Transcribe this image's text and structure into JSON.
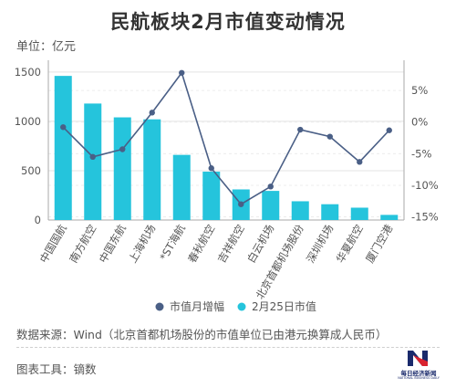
{
  "title": "民航板块2月市值变动情况",
  "unit_label": "单位：亿元",
  "source": "数据来源：Wind（北京首都机场股份的市值单位已由港元换算成人民币）",
  "tool": "图表工具：镝数",
  "logo": {
    "cn": "每日经济新闻",
    "en": "NATIONAL BUSINESS DAILY"
  },
  "colors": {
    "bar": "#25C4DC",
    "line": "#4A5F86",
    "grid": "#e3e3e3"
  },
  "chart_data": {
    "type": "bar",
    "categories": [
      "中国国航",
      "南方航空",
      "中国东航",
      "上海机场",
      "*ST海航",
      "春秋航空",
      "吉祥航空",
      "白云机场",
      "北京首都机场股份",
      "深圳机场",
      "华夏航空",
      "厦门空港"
    ],
    "series": [
      {
        "name": "2月25日市值",
        "type": "bar",
        "axis": "left",
        "values": [
          1460,
          1180,
          1040,
          1020,
          660,
          490,
          310,
          295,
          190,
          160,
          125,
          52
        ]
      },
      {
        "name": "市值月增幅",
        "type": "line",
        "axis": "right",
        "unit": "%",
        "values": [
          -0.8,
          -5.5,
          -4.3,
          1.5,
          7.8,
          -7.3,
          -13.0,
          -10.2,
          -1.2,
          -2.3,
          -6.3,
          -1.3
        ]
      }
    ],
    "y_left": {
      "ticks": [
        0,
        500,
        1000,
        1500
      ],
      "ylim": [
        0,
        1600
      ]
    },
    "y_right": {
      "ticks": [
        "5%",
        "0%",
        "-5%",
        "-10%",
        "-15%"
      ],
      "ylim": [
        -15.5,
        9.5
      ]
    },
    "grid": true,
    "legend_position": "bottom"
  }
}
